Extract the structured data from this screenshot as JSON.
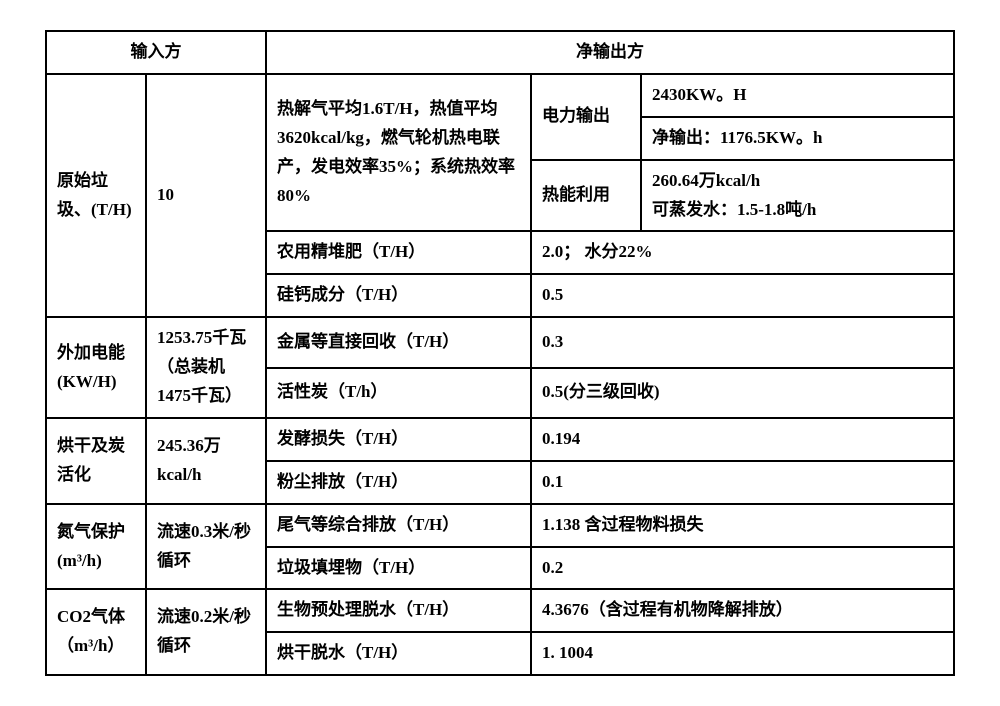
{
  "header": {
    "input_side": "输入方",
    "net_output_side": "净输出方"
  },
  "rows": {
    "raw_waste": {
      "label": "原始垃圾、(T/H)",
      "value": "10",
      "pyrolysis_desc": "热解气平均1.6T/H，热值平均3620kcal/kg，燃气轮机热电联产，发电效率35%；系统热效率80%",
      "power_output_label": "电力输出",
      "power_output_val1": "2430KW。H",
      "power_output_val2": "净输出：1176.5KW。h",
      "heat_use_label": "热能利用",
      "heat_use_val": "260.64万kcal/h\n可蒸发水：1.5-1.8吨/h",
      "compost_label": "农用精堆肥（T/H）",
      "compost_val": "2.0；  水分22%",
      "sica_label": "硅钙成分（T/H）",
      "sica_val": "0.5"
    },
    "ext_power": {
      "label": "外加电能(KW/H)",
      "value": "1253.75千瓦（总装机1475千瓦）",
      "metal_label": "金属等直接回收（T/H）",
      "metal_val": "0.3",
      "carbon_label": "活性炭（T/h）",
      "carbon_val": "0.5(分三级回收)"
    },
    "drying": {
      "label": "烘干及炭活化",
      "value": "245.36万kcal/h",
      "ferment_label": "发酵损失（T/H）",
      "ferment_val": "0.194",
      "dust_label": "粉尘排放（T/H）",
      "dust_val": "0.1"
    },
    "nitrogen": {
      "label": "氮气保护(m³/h)",
      "value": "流速0.3米/秒循环",
      "exhaust_label": "尾气等综合排放（T/H）",
      "exhaust_val": "1.138    含过程物料损失",
      "landfill_label": "垃圾填埋物（T/H）",
      "landfill_val": "0.2"
    },
    "co2": {
      "label": "CO2气体（m³/h）",
      "value": "流速0.2米/秒循环",
      "bio_label": "生物预处理脱水（T/H）",
      "bio_val": "4.3676（含过程有机物降解排放）",
      "dry_label": "烘干脱水（T/H）",
      "dry_val": "1. 1004"
    }
  }
}
